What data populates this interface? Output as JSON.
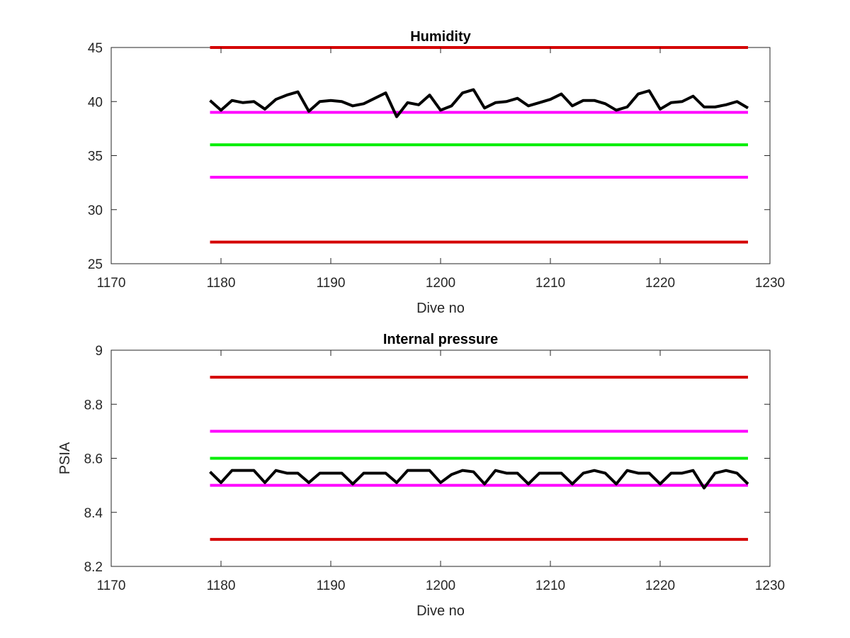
{
  "chart_data": [
    {
      "type": "line",
      "title": "Humidity",
      "xlabel": "Dive no",
      "ylabel": "",
      "xlim": [
        1170,
        1230
      ],
      "ylim": [
        25,
        45
      ],
      "xticks": [
        1170,
        1180,
        1190,
        1200,
        1210,
        1220,
        1230
      ],
      "yticks": [
        25,
        30,
        35,
        40,
        45
      ],
      "grid": false,
      "legend": "none",
      "reference_lines": [
        {
          "color": "#d40000",
          "y": 45,
          "x": [
            1179,
            1228
          ]
        },
        {
          "color": "#ff00ff",
          "y": 39,
          "x": [
            1179,
            1228
          ]
        },
        {
          "color": "#00ee00",
          "y": 36,
          "x": [
            1179,
            1228
          ]
        },
        {
          "color": "#ff00ff",
          "y": 33,
          "x": [
            1179,
            1228
          ]
        },
        {
          "color": "#d40000",
          "y": 27,
          "x": [
            1179,
            1228
          ]
        }
      ],
      "series": [
        {
          "color": "#000000",
          "x": [
            1179,
            1180,
            1181,
            1182,
            1183,
            1184,
            1185,
            1186,
            1187,
            1188,
            1189,
            1190,
            1191,
            1192,
            1193,
            1194,
            1195,
            1196,
            1197,
            1198,
            1199,
            1200,
            1201,
            1202,
            1203,
            1204,
            1205,
            1206,
            1207,
            1208,
            1209,
            1210,
            1211,
            1212,
            1213,
            1214,
            1215,
            1216,
            1217,
            1218,
            1219,
            1220,
            1221,
            1222,
            1223,
            1224,
            1225,
            1226,
            1227,
            1228
          ],
          "values": [
            40.1,
            39.2,
            40.1,
            39.9,
            40.0,
            39.3,
            40.2,
            40.6,
            40.9,
            39.1,
            40.0,
            40.1,
            40.0,
            39.6,
            39.8,
            40.3,
            40.8,
            38.6,
            39.9,
            39.7,
            40.6,
            39.2,
            39.6,
            40.8,
            41.1,
            39.4,
            39.9,
            40.0,
            40.3,
            39.6,
            39.9,
            40.2,
            40.7,
            39.6,
            40.1,
            40.1,
            39.8,
            39.2,
            39.5,
            40.7,
            41.0,
            39.3,
            39.9,
            40.0,
            40.5,
            39.5,
            39.5,
            39.7,
            40.0,
            39.4
          ]
        }
      ]
    },
    {
      "type": "line",
      "title": "Internal pressure",
      "xlabel": "Dive no",
      "ylabel": "PSIA",
      "xlim": [
        1170,
        1230
      ],
      "ylim": [
        8.2,
        9.0
      ],
      "xticks": [
        1170,
        1180,
        1190,
        1200,
        1210,
        1220,
        1230
      ],
      "yticks": [
        8.2,
        8.4,
        8.6,
        8.8,
        9.0
      ],
      "ytick_labels": [
        "8.2",
        "8.4",
        "8.6",
        "8.8",
        "9"
      ],
      "grid": false,
      "legend": "none",
      "reference_lines": [
        {
          "color": "#d40000",
          "y": 8.9,
          "x": [
            1179,
            1228
          ]
        },
        {
          "color": "#ff00ff",
          "y": 8.7,
          "x": [
            1179,
            1228
          ]
        },
        {
          "color": "#00ee00",
          "y": 8.6,
          "x": [
            1179,
            1228
          ]
        },
        {
          "color": "#ff00ff",
          "y": 8.5,
          "x": [
            1179,
            1228
          ]
        },
        {
          "color": "#d40000",
          "y": 8.3,
          "x": [
            1179,
            1228
          ]
        }
      ],
      "series": [
        {
          "color": "#000000",
          "x": [
            1179,
            1180,
            1181,
            1182,
            1183,
            1184,
            1185,
            1186,
            1187,
            1188,
            1189,
            1190,
            1191,
            1192,
            1193,
            1194,
            1195,
            1196,
            1197,
            1198,
            1199,
            1200,
            1201,
            1202,
            1203,
            1204,
            1205,
            1206,
            1207,
            1208,
            1209,
            1210,
            1211,
            1212,
            1213,
            1214,
            1215,
            1216,
            1217,
            1218,
            1219,
            1220,
            1221,
            1222,
            1223,
            1224,
            1225,
            1226,
            1227,
            1228
          ],
          "values": [
            8.55,
            8.51,
            8.555,
            8.555,
            8.555,
            8.51,
            8.555,
            8.545,
            8.545,
            8.51,
            8.545,
            8.545,
            8.545,
            8.505,
            8.545,
            8.545,
            8.545,
            8.51,
            8.555,
            8.555,
            8.555,
            8.51,
            8.54,
            8.555,
            8.55,
            8.505,
            8.555,
            8.545,
            8.545,
            8.505,
            8.545,
            8.545,
            8.545,
            8.505,
            8.545,
            8.555,
            8.545,
            8.505,
            8.555,
            8.545,
            8.545,
            8.505,
            8.545,
            8.545,
            8.555,
            8.49,
            8.545,
            8.555,
            8.545,
            8.505
          ]
        }
      ]
    }
  ]
}
